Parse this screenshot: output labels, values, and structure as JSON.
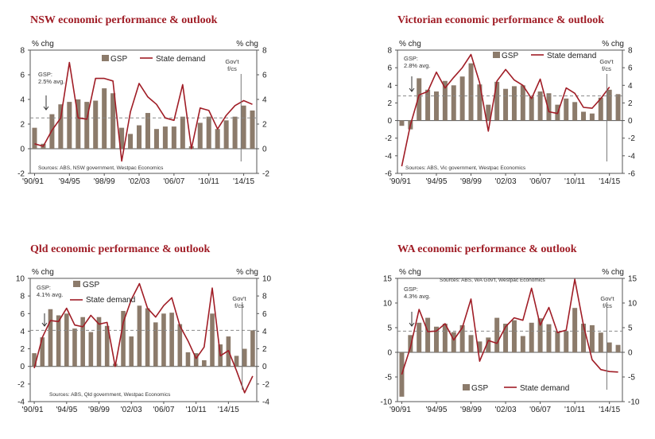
{
  "chart_data": [
    {
      "type": "bar",
      "title": "NSW economic performance & outlook",
      "ylabel_left": "% chg",
      "ylabel_right": "% chg",
      "ylim": [
        -2,
        8
      ],
      "yticks": [
        -2,
        0,
        2,
        4,
        6,
        8
      ],
      "x_tick_labels": [
        "'90/91",
        "'94/95",
        "'98/99",
        "'02/03",
        "'06/07",
        "'10/11",
        "'14/15"
      ],
      "series": [
        {
          "name": "GSP",
          "values": [
            1.7,
            0.4,
            2.8,
            3.6,
            3.8,
            4.0,
            3.8,
            3.9,
            4.9,
            4.5,
            1.7,
            1.2,
            1.9,
            2.9,
            1.6,
            1.8,
            1.8,
            2.6,
            0.2,
            2.1,
            2.6,
            1.6,
            2.3,
            2.6,
            3.5,
            3.1
          ]
        },
        {
          "name": "State demand",
          "values": [
            0.4,
            0.2,
            1.5,
            2.5,
            7.0,
            2.5,
            2.4,
            5.7,
            5.7,
            5.5,
            -1.0,
            3.0,
            5.3,
            4.2,
            3.6,
            2.5,
            2.3,
            5.2,
            0.0,
            3.3,
            3.1,
            1.6,
            2.7,
            3.5,
            3.9,
            3.6
          ]
        }
      ],
      "annotations": {
        "avg_label": "GSP:\n2.5% avg.",
        "avg_value": 2.5,
        "forecast_label": "Gov't\nf/cs"
      },
      "source": "Sources: ABS, NSW government, Westpac Economics"
    },
    {
      "type": "bar",
      "title": "Victorian economic performance & outlook",
      "ylabel_left": "% chg",
      "ylabel_right": "% chg",
      "ylim": [
        -6,
        8
      ],
      "yticks": [
        -6,
        -4,
        -2,
        0,
        2,
        4,
        6,
        8
      ],
      "x_tick_labels": [
        "'90/91",
        "'94/95",
        "'98/99",
        "'02/03",
        "'06/07",
        "'10/11",
        "'14/15"
      ],
      "series": [
        {
          "name": "GSP",
          "values": [
            -0.6,
            -1.0,
            4.8,
            3.5,
            3.3,
            4.5,
            4.0,
            5.0,
            6.5,
            4.1,
            1.8,
            4.4,
            3.6,
            3.9,
            4.0,
            2.7,
            3.3,
            3.1,
            1.8,
            2.5,
            2.1,
            1.0,
            0.8,
            2.6,
            3.5,
            3.0
          ]
        },
        {
          "name": "State demand",
          "values": [
            -5.2,
            -0.5,
            2.9,
            3.3,
            5.5,
            3.7,
            4.9,
            6.0,
            7.5,
            4.3,
            -1.2,
            4.5,
            5.8,
            4.6,
            4.0,
            2.5,
            4.7,
            1.0,
            0.8,
            3.7,
            3.1,
            1.5,
            1.4,
            2.5,
            3.8,
            null
          ]
        }
      ],
      "annotations": {
        "avg_label": "GSP:\n2.8% avg.",
        "avg_value": 2.8,
        "forecast_label": "Gov't\nf/cs"
      },
      "source": "Sources: ABS, Vic government, Westpac Economics"
    },
    {
      "type": "bar",
      "title": "Qld economic performance & outlook",
      "ylabel_left": "% chg",
      "ylabel_right": "% chg",
      "ylim": [
        -4,
        10
      ],
      "yticks": [
        -4,
        -2,
        0,
        2,
        4,
        6,
        8,
        10
      ],
      "x_tick_labels": [
        "'90/91",
        "'94/95",
        "'98/99",
        "'02/03",
        "'06/07",
        "'10/11",
        "'14/15"
      ],
      "series": [
        {
          "name": "GSP",
          "values": [
            1.5,
            3.3,
            6.5,
            5.8,
            6.0,
            4.3,
            5.6,
            3.9,
            5.6,
            4.6,
            0.3,
            6.3,
            3.4,
            6.9,
            6.6,
            5.0,
            6.0,
            6.1,
            4.8,
            1.6,
            1.5,
            0.7,
            6.0,
            2.5,
            3.4,
            1.2,
            2.0,
            4.1
          ]
        },
        {
          "name": "State demand",
          "values": [
            -0.2,
            3.3,
            5.2,
            5.1,
            6.6,
            4.7,
            4.5,
            5.8,
            4.8,
            5.0,
            0.0,
            5.0,
            7.6,
            9.4,
            6.6,
            5.6,
            6.9,
            7.8,
            4.6,
            2.9,
            0.9,
            2.2,
            8.9,
            1.2,
            1.8,
            -0.5,
            -3.0,
            -1.1
          ]
        }
      ],
      "annotations": {
        "avg_label": "GSP:\n4.1% avg.",
        "avg_value": 4.1,
        "forecast_label": "Gov't\nf/cs"
      },
      "source": "Sources: ABS, Qld government, Westpac Economics"
    },
    {
      "type": "bar",
      "title": "WA economic performance & outlook",
      "ylabel_left": "% chg",
      "ylabel_right": "% chg",
      "ylim": [
        -10,
        15
      ],
      "yticks": [
        -10,
        -5,
        0,
        5,
        10,
        15
      ],
      "x_tick_labels": [
        "'90/91",
        "'94/95",
        "'98/99",
        "'02/03",
        "'06/07",
        "'10/11",
        "'14/15"
      ],
      "series": [
        {
          "name": "GSP",
          "values": [
            -9.0,
            3.5,
            6.0,
            7.0,
            5.2,
            5.8,
            4.1,
            5.5,
            3.5,
            2.2,
            3.0,
            7.0,
            5.8,
            6.5,
            3.3,
            6.0,
            6.9,
            5.7,
            4.2,
            4.3,
            9.0,
            5.8,
            5.5,
            4.0,
            2.0,
            1.5
          ]
        },
        {
          "name": "State demand",
          "values": [
            -4.5,
            1.0,
            8.7,
            4.2,
            4.3,
            5.8,
            2.5,
            5.0,
            10.8,
            -1.8,
            2.4,
            1.8,
            5.2,
            7.0,
            6.5,
            13.0,
            5.5,
            9.1,
            4.0,
            4.5,
            14.8,
            5.5,
            -1.5,
            -3.5,
            -3.9,
            -4.0
          ]
        }
      ],
      "annotations": {
        "avg_label": "GSP:\n4.3% avg.",
        "avg_value": 4.3,
        "forecast_label": "Gov't\nf/cs"
      },
      "source": "Sources: ABS, WA Gov't, Westpac Economics"
    }
  ]
}
